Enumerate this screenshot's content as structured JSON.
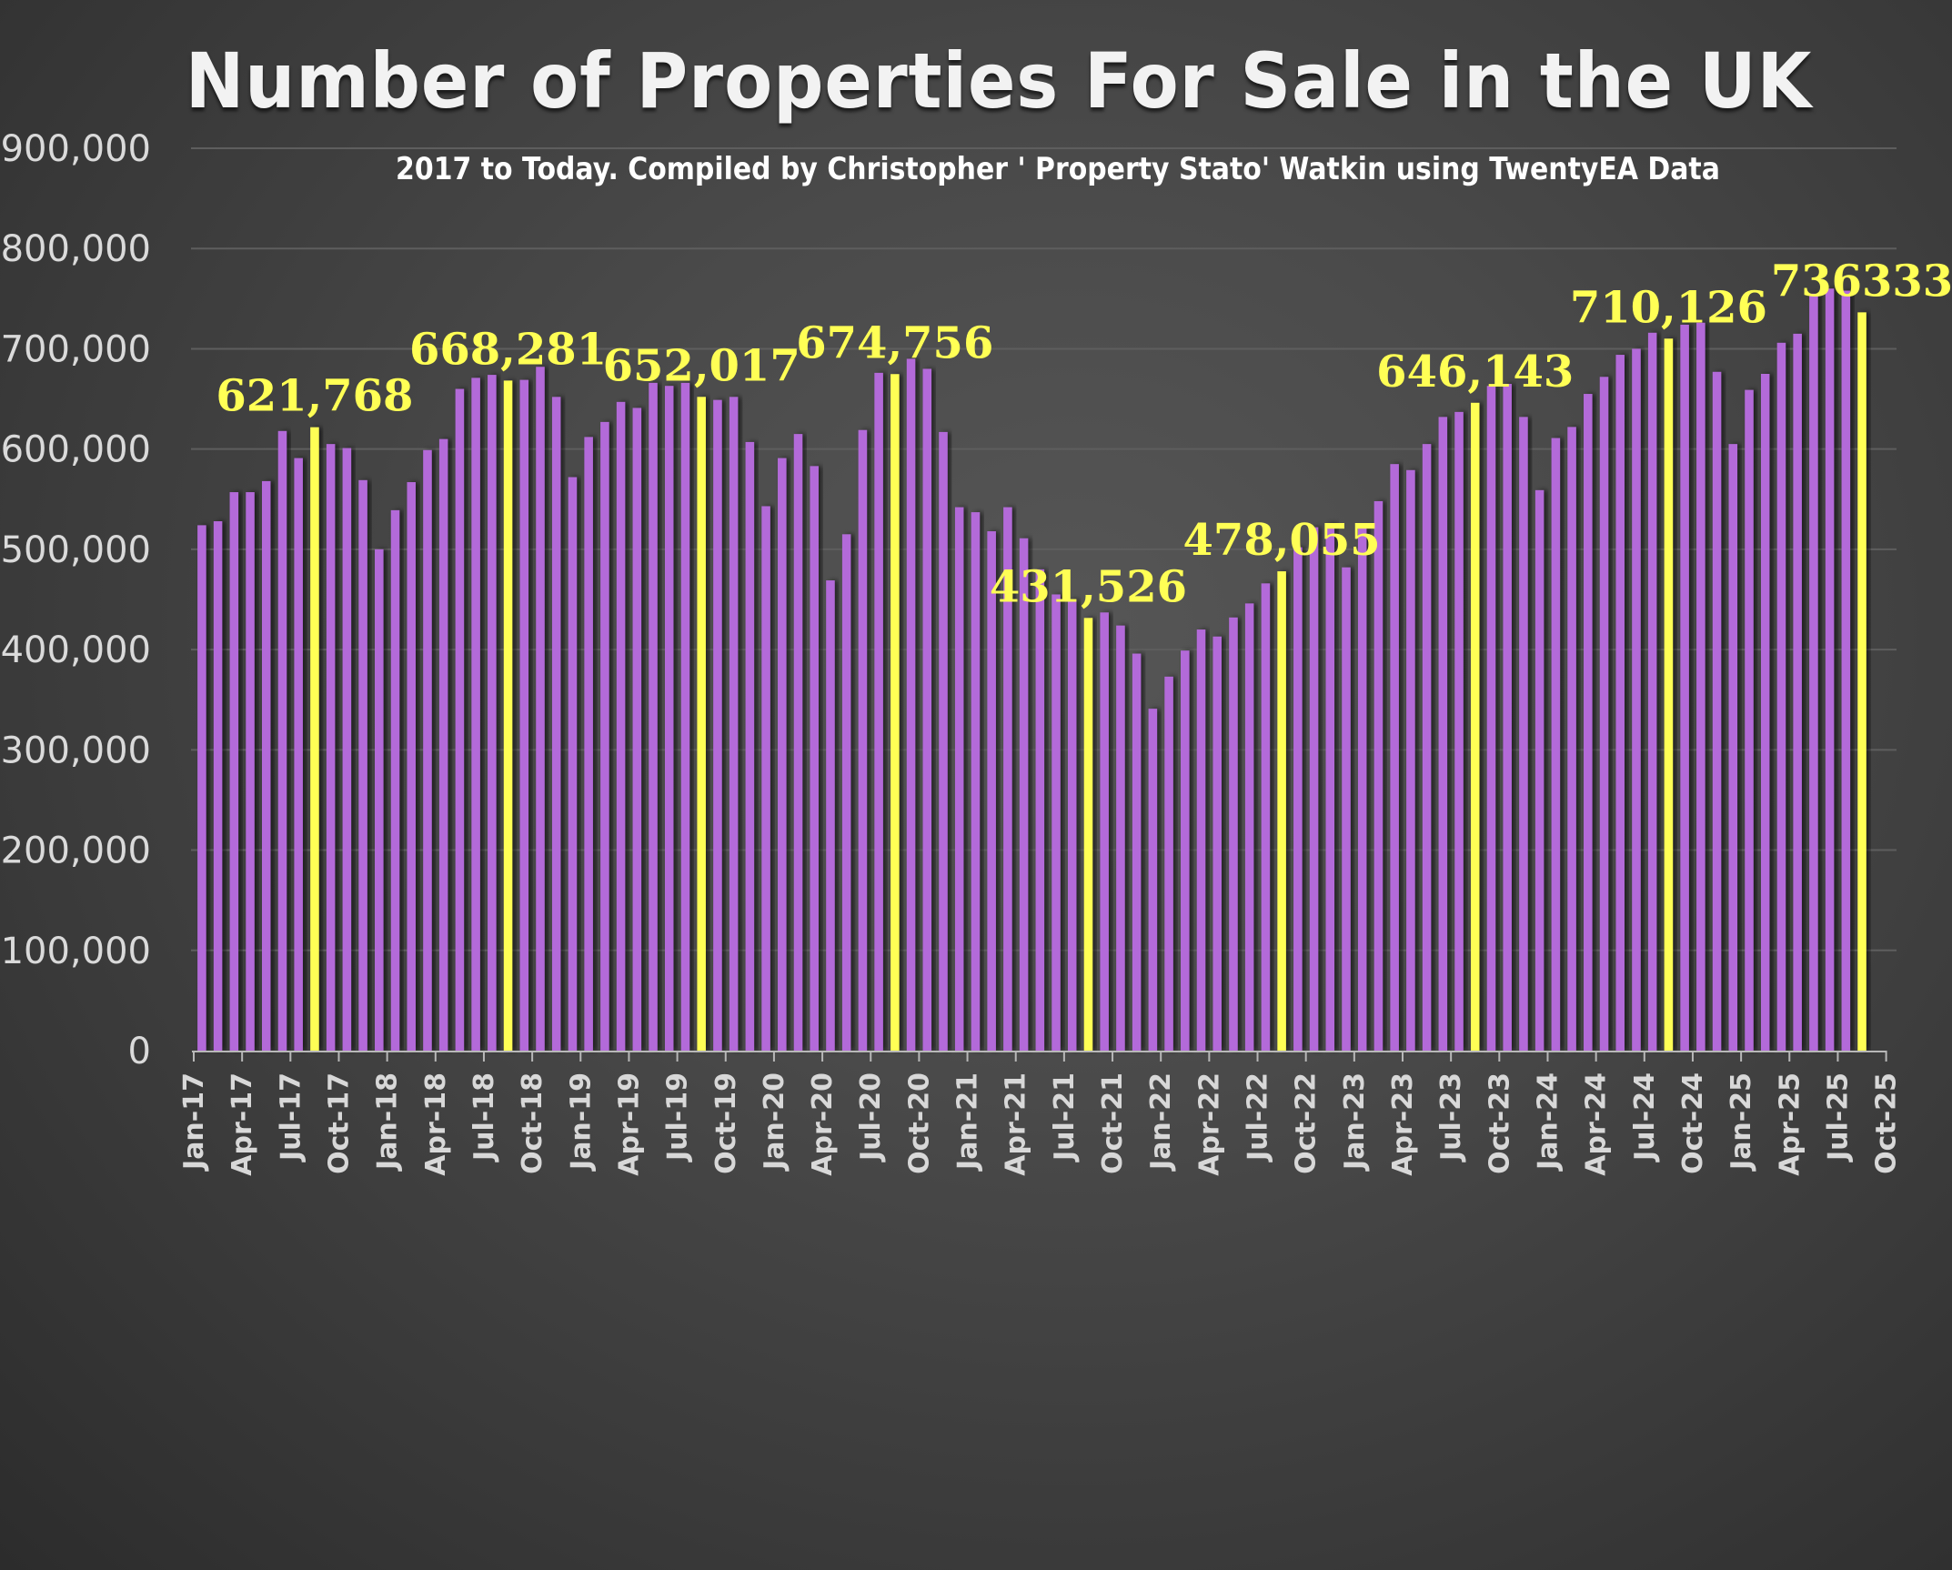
{
  "chart_data": {
    "type": "bar",
    "title": "Number of Properties For Sale in the UK",
    "subtitle": "2017 to Today. Compiled by Christopher ' Property Stato' Watkin using TwentyEA Data",
    "xlabel": "",
    "ylabel": "",
    "ylim": [
      0,
      900000
    ],
    "yticks": [
      0,
      100000,
      200000,
      300000,
      400000,
      500000,
      600000,
      700000,
      800000,
      900000
    ],
    "ytick_labels": [
      "0",
      "100,000",
      "200,000",
      "300,000",
      "400,000",
      "500,000",
      "600,000",
      "700,000",
      "800,000",
      "900,000"
    ],
    "xtick_labels": [
      "Jan-17",
      "Apr-17",
      "Jul-17",
      "Oct-17",
      "Jan-18",
      "Apr-18",
      "Jul-18",
      "Oct-18",
      "Jan-19",
      "Apr-19",
      "Jul-19",
      "Oct-19",
      "Jan-20",
      "Apr-20",
      "Jul-20",
      "Oct-20",
      "Jan-21",
      "Apr-21",
      "Jul-21",
      "Oct-21",
      "Jan-22",
      "Apr-22",
      "Jul-22",
      "Oct-22",
      "Jan-23",
      "Apr-23",
      "Jul-23",
      "Oct-23",
      "Jan-24",
      "Apr-24",
      "Jul-24",
      "Oct-24",
      "Jan-25",
      "Apr-25",
      "Jul-25",
      "Oct-25"
    ],
    "grid": true,
    "legend": "none",
    "colors": {
      "bar": "#b36ad9",
      "highlight": "#ffff55",
      "label": "#ffff55",
      "grid": "#5e5e5e",
      "axis_text": "#dadada"
    },
    "categories_start": "Jan-17",
    "categories_frequency": "monthly",
    "values": [
      524000,
      528000,
      557000,
      557000,
      568000,
      618000,
      591000,
      621768,
      605000,
      601000,
      569000,
      500000,
      539000,
      567000,
      599000,
      610000,
      660000,
      671000,
      674000,
      668281,
      669000,
      682000,
      652000,
      572000,
      612000,
      627000,
      647000,
      641000,
      666000,
      663000,
      666000,
      652017,
      649000,
      652000,
      607000,
      543000,
      591000,
      615000,
      583000,
      469000,
      515000,
      619000,
      676000,
      674756,
      690000,
      680000,
      617000,
      542000,
      537000,
      518000,
      542000,
      511000,
      480000,
      455000,
      450000,
      431526,
      437000,
      424000,
      396000,
      341000,
      373000,
      399000,
      420000,
      413000,
      432000,
      446000,
      466000,
      478055,
      502000,
      522000,
      526000,
      482000,
      523000,
      548000,
      585000,
      579000,
      605000,
      632000,
      637000,
      646143,
      663000,
      665000,
      632000,
      559000,
      611000,
      622000,
      655000,
      672000,
      694000,
      700000,
      716000,
      710126,
      724000,
      726000,
      677000,
      605000,
      659000,
      675000,
      706000,
      715000,
      755000,
      760000,
      758000,
      736333
    ],
    "highlighted": [
      {
        "index": 7,
        "month": "Aug-17",
        "value": 621768,
        "label": "621,768"
      },
      {
        "index": 19,
        "month": "Aug-18",
        "value": 668281,
        "label": "668,281"
      },
      {
        "index": 31,
        "month": "Aug-19",
        "value": 652017,
        "label": "652,017"
      },
      {
        "index": 43,
        "month": "Aug-20",
        "value": 674756,
        "label": "674,756"
      },
      {
        "index": 55,
        "month": "Aug-21",
        "value": 431526,
        "label": "431,526"
      },
      {
        "index": 67,
        "month": "Aug-22",
        "value": 478055,
        "label": "478,055"
      },
      {
        "index": 79,
        "month": "Aug-23",
        "value": 646143,
        "label": "646,143"
      },
      {
        "index": 91,
        "month": "Aug-24",
        "value": 710126,
        "label": "710,126"
      },
      {
        "index": 103,
        "month": "Aug-25",
        "value": 736333,
        "label": "736333"
      }
    ]
  }
}
